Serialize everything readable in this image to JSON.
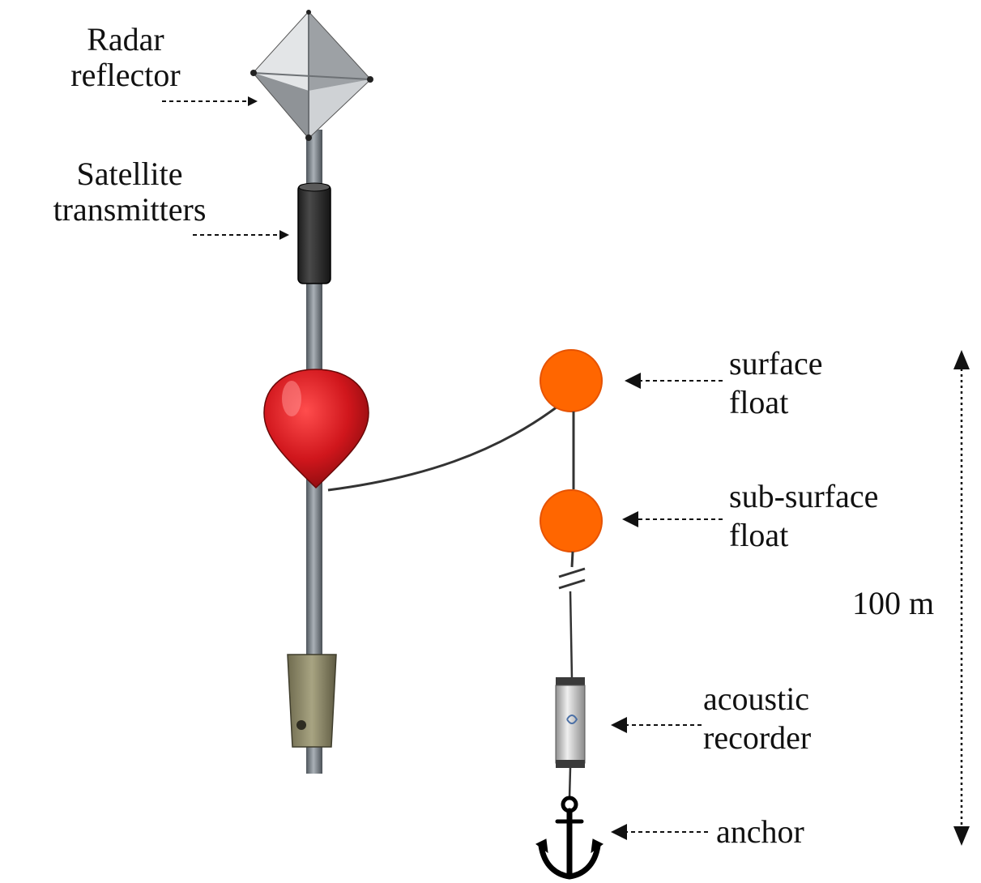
{
  "labels": {
    "radar_reflector": [
      "Radar",
      "reflector"
    ],
    "satellite_transmitters": [
      "Satellite",
      "transmitters"
    ],
    "surface_float": [
      "surface",
      "float"
    ],
    "subsurface_float": [
      "sub-surface",
      "float"
    ],
    "acoustic_recorder": [
      "acoustic",
      "recorder"
    ],
    "anchor": "anchor",
    "depth": "100 m"
  },
  "colors": {
    "buoy_red": "#d0161c",
    "float_orange": "#ff6600",
    "pole_grey": "#7d858c",
    "transmitter_black": "#2a2a2a",
    "ballast_olive": "#8d8a68"
  },
  "icons": [
    "radar-reflector-icon",
    "satellite-transmitter-icon",
    "spar-buoy-icon",
    "ballast-weight-icon",
    "surface-float-icon",
    "subsurface-float-icon",
    "acoustic-recorder-icon",
    "anchor-icon"
  ]
}
